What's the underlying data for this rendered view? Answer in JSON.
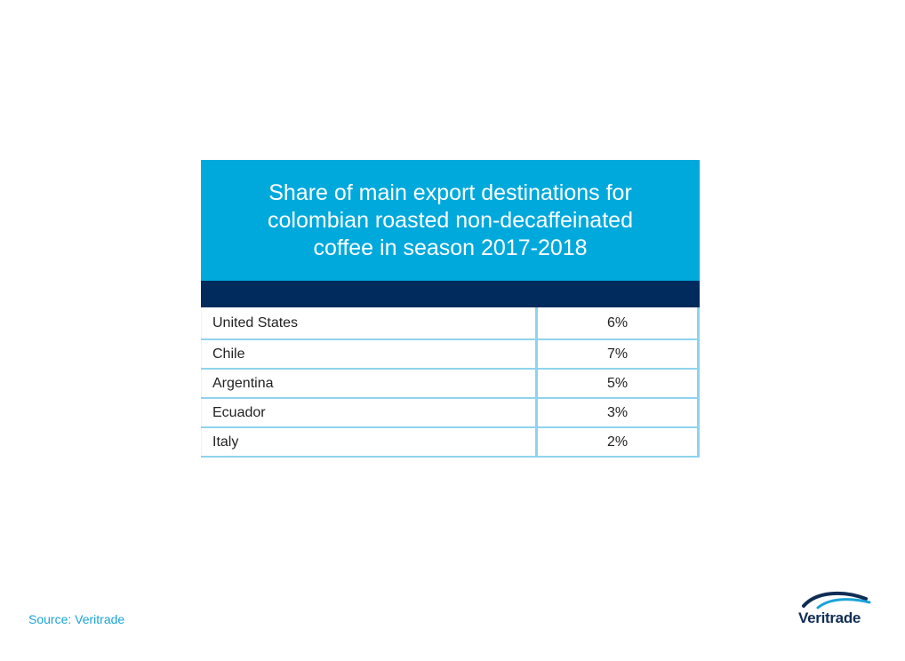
{
  "chart_data": {
    "type": "table",
    "title": "Share of main export destinations for colombian roasted non-decaffeinated coffee in season 2017-2018",
    "rows": [
      {
        "country": "United States",
        "share": "6%"
      },
      {
        "country": "Chile",
        "share": "7%"
      },
      {
        "country": "Argentina",
        "share": "5%"
      },
      {
        "country": "Ecuador",
        "share": "3%"
      },
      {
        "country": "Italy",
        "share": "2%"
      }
    ],
    "colors": {
      "title_background": "#00a9dc",
      "header_bar": "#002b5c",
      "grid_lines": "#8fd3ec"
    }
  },
  "footer": {
    "source": "Source: Veritrade"
  },
  "logo": {
    "text": "Veritrade",
    "icon": "veritrade-swoosh-icon"
  }
}
